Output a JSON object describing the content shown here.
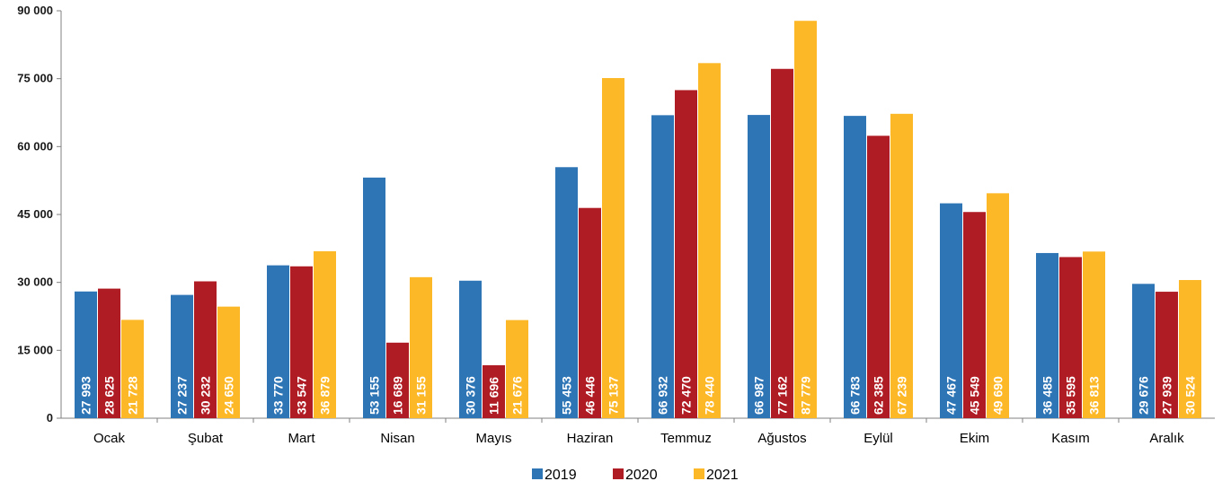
{
  "chart_data": {
    "type": "bar",
    "categories": [
      "Ocak",
      "Şubat",
      "Mart",
      "Nisan",
      "Mayıs",
      "Haziran",
      "Temmuz",
      "Ağustos",
      "Eylül",
      "Ekim",
      "Kasım",
      "Aralık"
    ],
    "series": [
      {
        "name": "2019",
        "color": "#2E75B6",
        "values": [
          27993,
          27237,
          33770,
          53155,
          30376,
          55453,
          66932,
          66987,
          66783,
          47467,
          36485,
          29676
        ],
        "labels": [
          "27 993",
          "27 237",
          "33 770",
          "53 155",
          "30 376",
          "55 453",
          "66 932",
          "66 987",
          "66 783",
          "47 467",
          "36 485",
          "29 676"
        ]
      },
      {
        "name": "2020",
        "color": "#B01C24",
        "values": [
          28625,
          30232,
          33547,
          16689,
          11696,
          46446,
          72470,
          77162,
          62385,
          45549,
          35595,
          27939
        ],
        "labels": [
          "28 625",
          "30 232",
          "33 547",
          "16 689",
          "11 696",
          "46 446",
          "72 470",
          "77 162",
          "62 385",
          "45 549",
          "35 595",
          "27 939"
        ]
      },
      {
        "name": "2021",
        "color": "#FDB827",
        "values": [
          21728,
          24650,
          36879,
          31155,
          21676,
          75137,
          78440,
          87779,
          67239,
          49690,
          36813,
          30524
        ],
        "labels": [
          "21 728",
          "24 650",
          "36 879",
          "31 155",
          "21 676",
          "75 137",
          "78 440",
          "87 779",
          "67 239",
          "49 690",
          "36 813",
          "30 524"
        ]
      }
    ],
    "yticks": [
      0,
      15000,
      30000,
      45000,
      60000,
      75000,
      90000
    ],
    "ytick_labels": [
      "0",
      "15 000",
      "30 000",
      "45 000",
      "60 000",
      "75 000",
      "90 000"
    ],
    "ylim": [
      0,
      90000
    ],
    "grid": false,
    "legend_position": "bottom-center"
  }
}
